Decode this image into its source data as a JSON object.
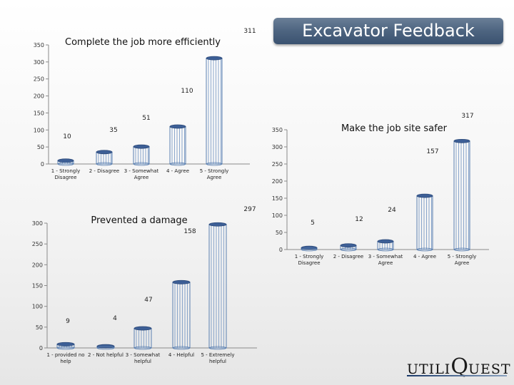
{
  "header": {
    "title": "Excavator Feedback"
  },
  "logo": {
    "part1": "UTILI",
    "part2": "Q",
    "part3": "UEST"
  },
  "chart_data": [
    {
      "type": "bar",
      "title": "Complete the job more efficiently",
      "categories": [
        "1 - Strongly Disagree",
        "2 - Disagree",
        "3 - Somewhat Agree",
        "4 - Agree",
        "5 - Strongly Agree"
      ],
      "values": [
        10,
        35,
        51,
        110,
        311
      ],
      "ylim": [
        0,
        350
      ],
      "yticks": [
        0,
        50,
        100,
        150,
        200,
        250,
        300,
        350
      ],
      "grid": false
    },
    {
      "type": "bar",
      "title": "Make the job site safer",
      "categories": [
        "1 - Strongly Disagree",
        "2 - Disagree",
        "3 - Somewhat Agree",
        "4 - Agree",
        "5 - Strongly Agree"
      ],
      "values": [
        5,
        12,
        24,
        157,
        317
      ],
      "ylim": [
        0,
        350
      ],
      "yticks": [
        0,
        50,
        100,
        150,
        200,
        250,
        300,
        350
      ],
      "grid": false
    },
    {
      "type": "bar",
      "title": "Prevented a damage",
      "categories": [
        "1 - provided no help",
        "2 - Not helpful",
        "3 - Somewhat helpful",
        "4 - Helpful",
        "5 - Extremely helpful"
      ],
      "values": [
        9,
        4,
        47,
        158,
        297
      ],
      "ylim": [
        0,
        300
      ],
      "yticks": [
        0,
        50,
        100,
        150,
        200,
        250,
        300
      ],
      "grid": false
    }
  ]
}
